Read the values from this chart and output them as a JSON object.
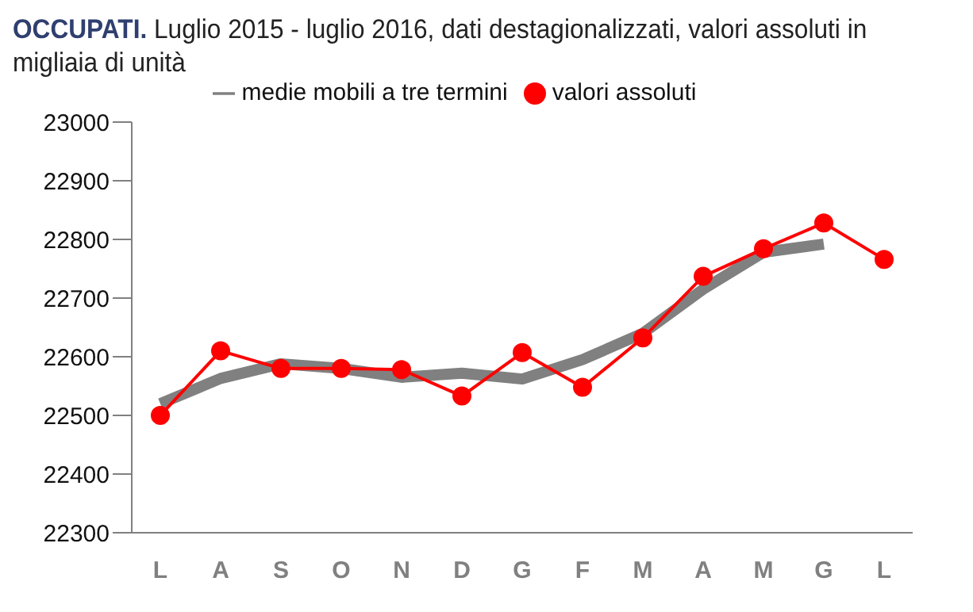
{
  "chart_data": {
    "type": "line",
    "title": "OCCUPATI.",
    "subtitle": "Luglio 2015 - luglio 2016, dati destagionalizzati, valori assoluti in migliaia di unità",
    "categories": [
      "L",
      "A",
      "S",
      "O",
      "N",
      "D",
      "G",
      "F",
      "M",
      "A",
      "M",
      "G",
      "L"
    ],
    "series": [
      {
        "name": "medie mobili a tre termini",
        "color": "#808080",
        "marker": "none",
        "values": [
          22520,
          22563,
          22588,
          22580,
          22565,
          22572,
          22562,
          22595,
          22640,
          22715,
          22778,
          22792,
          null
        ]
      },
      {
        "name": "valori assoluti",
        "color": "#ff0000",
        "marker": "circle",
        "values": [
          22500,
          22610,
          22580,
          22580,
          22578,
          22533,
          22607,
          22548,
          22632,
          22737,
          22784,
          22828,
          22766
        ]
      }
    ],
    "ylim": [
      22300,
      23000
    ],
    "yticks": [
      22300,
      22400,
      22500,
      22600,
      22700,
      22800,
      22900,
      23000
    ],
    "grid": false,
    "legend": "top"
  }
}
